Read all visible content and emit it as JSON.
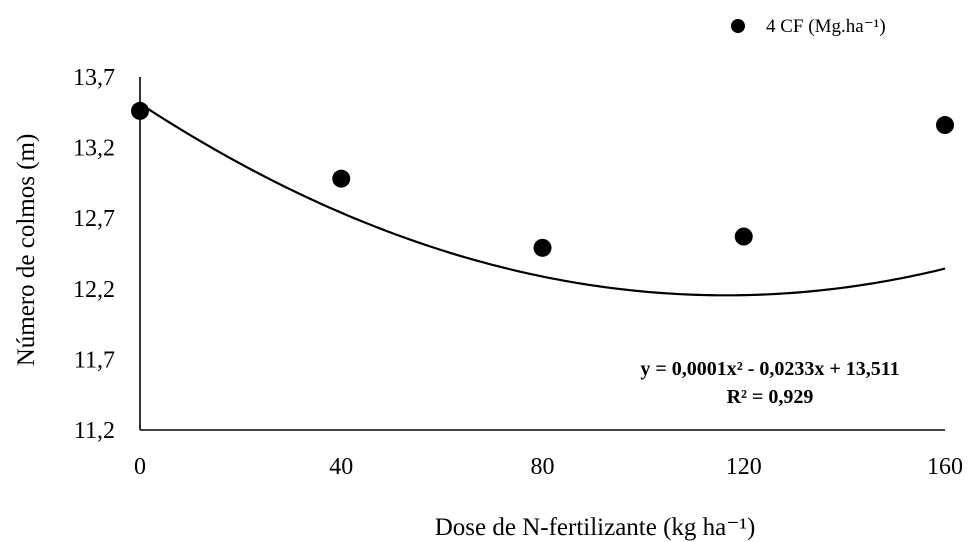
{
  "chart_data": {
    "type": "scatter",
    "xlabel": "Dose de N-fertilizante  (kg ha⁻¹)",
    "ylabel": "Número de colmos (m)",
    "xlim": [
      0,
      160
    ],
    "ylim": [
      11.2,
      13.7
    ],
    "x_ticks": [
      "0",
      "40",
      "80",
      "120",
      "160"
    ],
    "x_tick_values": [
      0,
      40,
      80,
      120,
      160
    ],
    "y_ticks": [
      "11,2",
      "11,7",
      "12,2",
      "12,7",
      "13,2",
      "13,7"
    ],
    "y_tick_values": [
      11.2,
      11.7,
      12.2,
      12.7,
      13.2,
      13.7
    ],
    "grid": false,
    "legend_position": "top-right",
    "series": [
      {
        "name": "4 CF (Mg.ha⁻¹)",
        "marker": "circle",
        "color": "#000000",
        "x": [
          0,
          40,
          80,
          120,
          160
        ],
        "y": [
          13.46,
          12.98,
          12.49,
          12.57,
          13.36
        ]
      }
    ],
    "trendline": {
      "type": "polynomial",
      "coefficients": [
        0.0001,
        -0.0233,
        13.511
      ],
      "color": "#000000"
    },
    "annotations": {
      "equation": "y = 0,0001x² - 0,0233x + 13,511",
      "r_squared": "R² = 0,929"
    }
  }
}
